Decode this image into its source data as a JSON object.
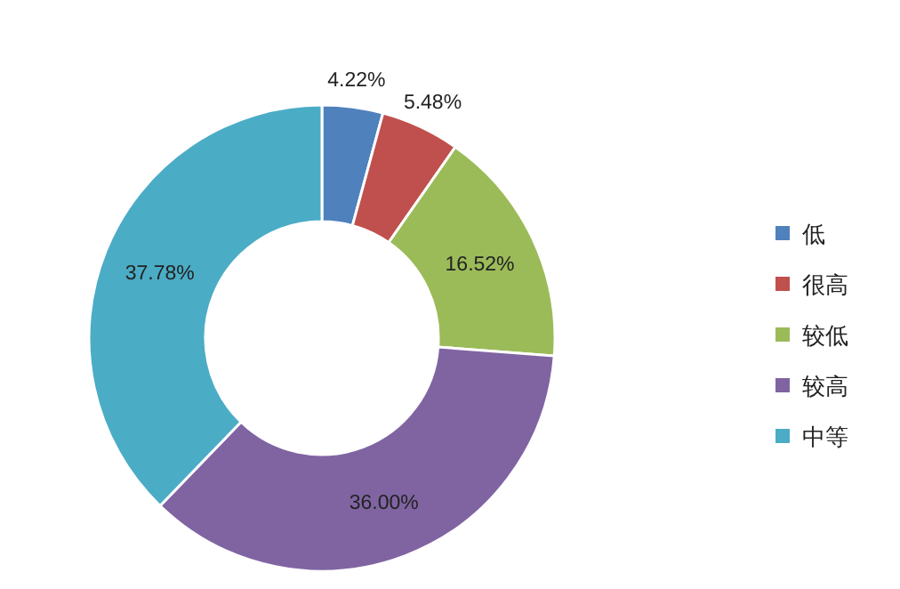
{
  "chart_data": {
    "type": "donut",
    "categories": [
      "低",
      "很高",
      "较低",
      "较高",
      "中等"
    ],
    "values": [
      4.22,
      5.48,
      16.52,
      36.0,
      37.78
    ],
    "colors": [
      "#4f81bd",
      "#c0504d",
      "#9bbb59",
      "#8064a2",
      "#4bacc6"
    ],
    "value_labels": [
      "4.22%",
      "5.48%",
      "16.52%",
      "36.00%",
      "37.78%"
    ],
    "legend": "right"
  }
}
